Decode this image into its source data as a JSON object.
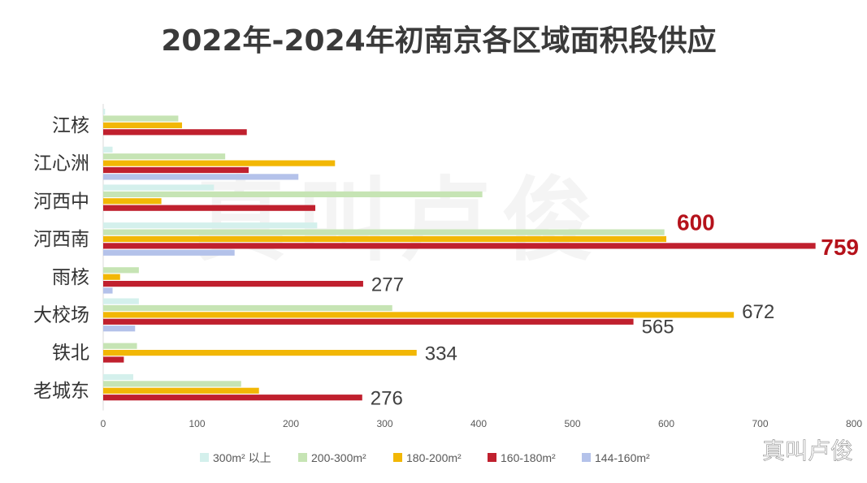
{
  "watermark": "真叫卢俊",
  "colors": {
    "300m² 以上": "#d4f0ec",
    "200-300m²": "#c6e4b4",
    "180-200m²": "#f2b705",
    "160-180m²": "#c0202e",
    "144-160m²": "#b4c2ea",
    "axis_text": "#333333",
    "annotation": "#404040",
    "highlight": "#b5121b"
  },
  "chart_data": {
    "type": "bar",
    "orientation": "horizontal",
    "title": "2022年-2024年初南京各区域面积段供应",
    "categories": [
      "江核",
      "江心洲",
      "河西中",
      "河西南",
      "雨核",
      "大校场",
      "铁北",
      "老城东"
    ],
    "xlim": [
      0,
      800
    ],
    "xticks": [
      0,
      100,
      200,
      300,
      400,
      500,
      600,
      700,
      800
    ],
    "grid": false,
    "legend": "bottom",
    "series": [
      {
        "name": "300m² 以上",
        "values": [
          2,
          10,
          118,
          228,
          0,
          38,
          0,
          32
        ]
      },
      {
        "name": "200-300m²",
        "values": [
          80,
          130,
          404,
          598,
          38,
          308,
          36,
          147
        ]
      },
      {
        "name": "180-200m²",
        "values": [
          84,
          247,
          62,
          600,
          18,
          672,
          334,
          166
        ]
      },
      {
        "name": "160-180m²",
        "values": [
          153,
          155,
          226,
          759,
          277,
          565,
          22,
          276
        ]
      },
      {
        "name": "144-160m²",
        "values": [
          0,
          208,
          0,
          140,
          10,
          34,
          0,
          0
        ]
      }
    ],
    "annotations": [
      {
        "category": "河西南",
        "series": "180-200m²",
        "text": "600",
        "highlight": true
      },
      {
        "category": "河西南",
        "series": "160-180m²",
        "text": "759",
        "highlight": true
      },
      {
        "category": "雨核",
        "series": "160-180m²",
        "text": "277"
      },
      {
        "category": "大校场",
        "series": "180-200m²",
        "text": "672"
      },
      {
        "category": "大校场",
        "series": "160-180m²",
        "text": "565"
      },
      {
        "category": "铁北",
        "series": "180-200m²",
        "text": "334"
      },
      {
        "category": "老城东",
        "series": "160-180m²",
        "text": "276"
      }
    ]
  }
}
